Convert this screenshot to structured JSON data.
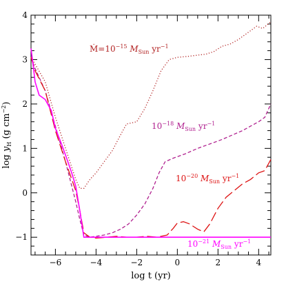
{
  "chart_data": {
    "type": "line",
    "xlabel": "log t (yr)",
    "ylabel": "log y_H (g cm^-2)",
    "xlim": [
      -7.2,
      4.6
    ],
    "ylim": [
      -1.4,
      4.0
    ],
    "xticks": [
      -6,
      -4,
      -2,
      0,
      2,
      4
    ],
    "yticks": [
      -1,
      0,
      1,
      2,
      3,
      4
    ],
    "xtick_labels": [
      "−6",
      "−4",
      "−2",
      "0",
      "2",
      "4"
    ],
    "ytick_labels": [
      "−1",
      "0",
      "1",
      "2",
      "3",
      "4"
    ],
    "grid": false,
    "legend": "none",
    "series": [
      {
        "label": "Ṁ=10^-15 M_Sun yr^-1",
        "color": "#b22222",
        "dash": "dotted",
        "x": [
          -7.2,
          -7.0,
          -6.5,
          -6.0,
          -5.5,
          -5.0,
          -4.8,
          -4.6,
          -4.3,
          -4.0,
          -3.6,
          -3.2,
          -2.8,
          -2.5,
          -2.0,
          -1.6,
          -1.2,
          -0.8,
          -0.4,
          0.0,
          0.5,
          1.0,
          1.4,
          1.8,
          2.2,
          2.6,
          3.0,
          3.3,
          3.6,
          3.9,
          4.2,
          4.6
        ],
        "y": [
          3.05,
          2.9,
          2.5,
          1.7,
          1.0,
          0.3,
          0.1,
          0.1,
          0.3,
          0.45,
          0.7,
          0.95,
          1.3,
          1.55,
          1.6,
          1.9,
          2.3,
          2.75,
          3.0,
          3.05,
          3.07,
          3.1,
          3.12,
          3.18,
          3.3,
          3.35,
          3.45,
          3.55,
          3.65,
          3.75,
          3.7,
          3.85
        ]
      },
      {
        "label": "10^-18 M_Sun yr^-1",
        "color": "#b0208f",
        "dash": "dashed",
        "x": [
          -7.2,
          -7.0,
          -6.5,
          -6.0,
          -5.5,
          -5.0,
          -4.8,
          -4.6,
          -4.3,
          -4.0,
          -3.6,
          -3.2,
          -2.8,
          -2.4,
          -2.0,
          -1.6,
          -1.2,
          -0.9,
          -0.6,
          -0.2,
          0.4,
          1.0,
          1.6,
          2.2,
          2.8,
          3.2,
          3.6,
          4.0,
          4.3,
          4.6
        ],
        "y": [
          3.05,
          2.8,
          2.3,
          1.5,
          0.7,
          -0.2,
          -0.6,
          -0.95,
          -1.0,
          -0.98,
          -0.95,
          -0.9,
          -0.82,
          -0.7,
          -0.5,
          -0.25,
          0.1,
          0.45,
          0.7,
          0.78,
          0.88,
          1.0,
          1.1,
          1.2,
          1.32,
          1.4,
          1.5,
          1.6,
          1.7,
          2.0
        ]
      },
      {
        "label": "10^-20 M_Sun yr^-1",
        "color": "#dd1111",
        "dash": "longdash",
        "x": [
          -7.2,
          -7.0,
          -6.5,
          -6.0,
          -5.5,
          -5.0,
          -4.8,
          -4.6,
          -4.3,
          -4.0,
          -3.5,
          -3.0,
          -2.5,
          -2.0,
          -1.5,
          -1.0,
          -0.5,
          -0.2,
          0.0,
          0.3,
          0.6,
          1.0,
          1.3,
          1.6,
          2.0,
          2.4,
          2.8,
          3.2,
          3.6,
          4.0,
          4.3,
          4.6
        ],
        "y": [
          3.05,
          2.75,
          2.3,
          1.4,
          0.7,
          0.05,
          -0.4,
          -0.9,
          -1.0,
          -1.02,
          -1.0,
          -0.98,
          -1.0,
          -1.0,
          -0.98,
          -1.0,
          -0.95,
          -0.8,
          -0.68,
          -0.65,
          -0.7,
          -0.82,
          -0.88,
          -0.7,
          -0.35,
          -0.1,
          0.05,
          0.2,
          0.3,
          0.45,
          0.5,
          0.75
        ]
      },
      {
        "label": "10^-21 M_Sun yr^-1",
        "color": "#ff00ff",
        "dash": "solid",
        "x": [
          -7.2,
          -7.1,
          -7.0,
          -6.8,
          -6.5,
          -6.2,
          -6.0,
          -5.7,
          -5.5,
          -5.2,
          -5.0,
          -4.8,
          -4.6,
          -4.3,
          -4.0,
          -3.0,
          -2.0,
          -1.0,
          0.0,
          1.0,
          2.0,
          3.0,
          4.0,
          4.6
        ],
        "y": [
          3.25,
          2.9,
          2.5,
          2.2,
          2.1,
          1.85,
          1.45,
          1.1,
          0.85,
          0.45,
          0.15,
          -0.4,
          -1.0,
          -1.0,
          -1.0,
          -1.0,
          -1.0,
          -1.0,
          -1.0,
          -1.0,
          -1.0,
          -1.0,
          -1.0,
          -1.0
        ]
      }
    ],
    "annotations": [
      {
        "series": 0,
        "main": "Ṁ=10",
        "sup": "−15",
        "unit": "M",
        "unit_sub": "Sun",
        "tail": "yr",
        "tail_sup": "−1"
      },
      {
        "series": 1,
        "main": "10",
        "sup": "−18",
        "unit": "M",
        "unit_sub": "Sun",
        "tail": "yr",
        "tail_sup": "−1"
      },
      {
        "series": 2,
        "main": "10",
        "sup": "−20",
        "unit": "M",
        "unit_sub": "Sun",
        "tail": "yr",
        "tail_sup": "−1"
      },
      {
        "series": 3,
        "main": "10",
        "sup": "−21",
        "unit": "M",
        "unit_sub": "Sun",
        "tail": "yr",
        "tail_sup": "−1"
      }
    ]
  }
}
